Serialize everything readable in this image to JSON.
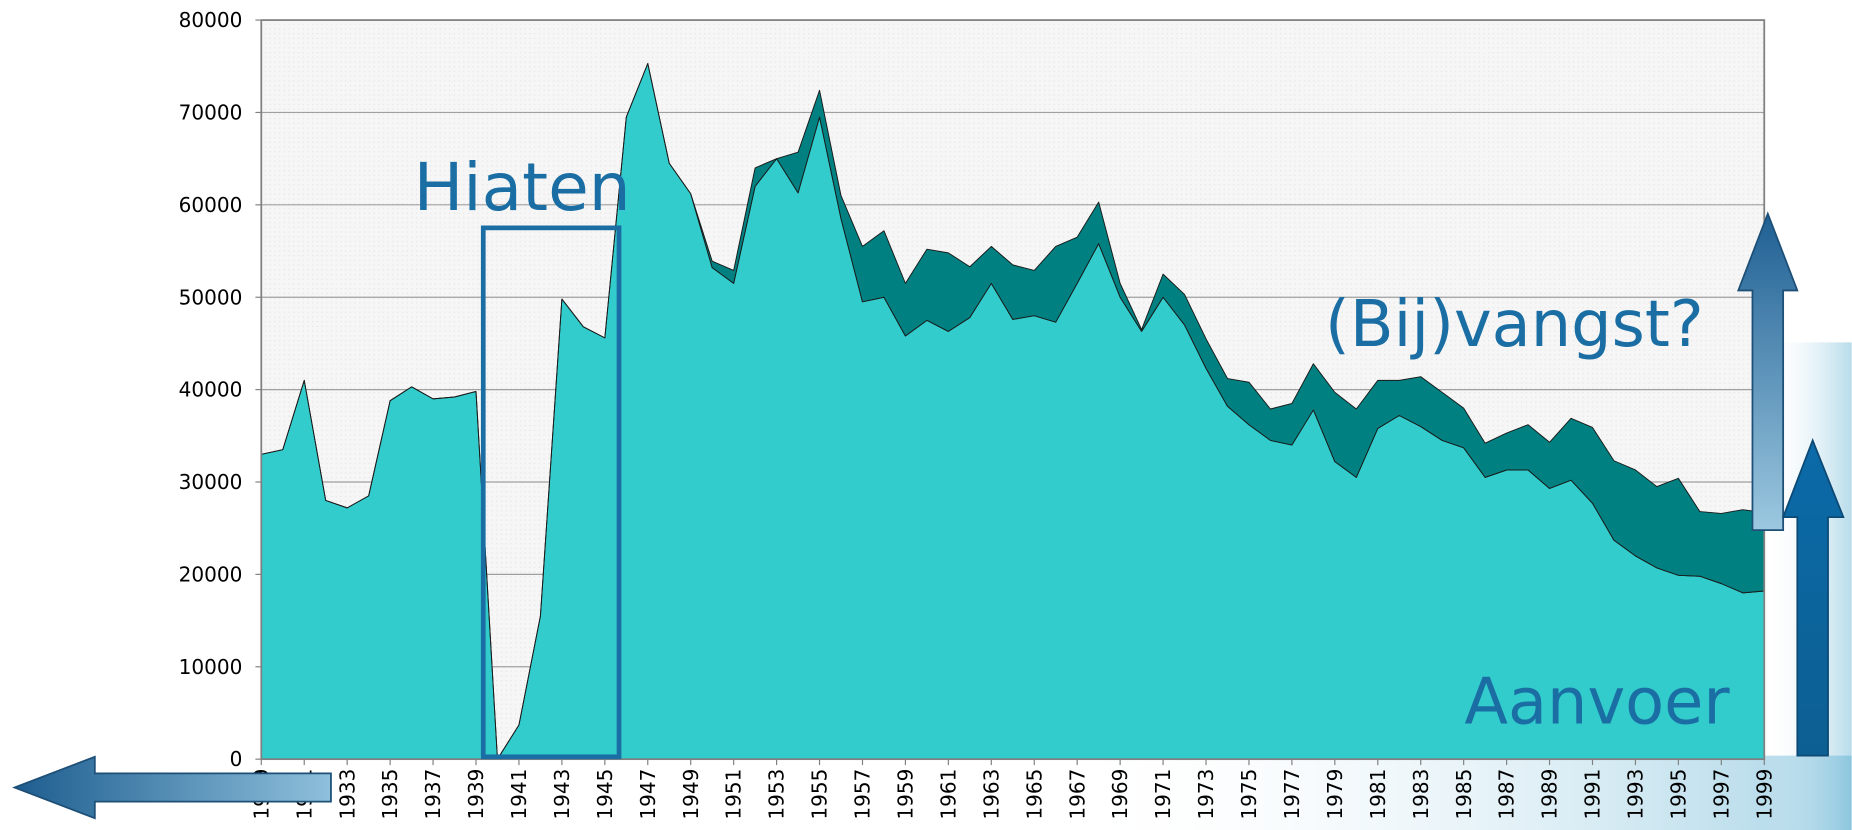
{
  "chart_data": {
    "type": "area",
    "stacked": true,
    "annotations": [
      "Hiaten"
    ],
    "x": [
      1929,
      1930,
      1931,
      1932,
      1933,
      1934,
      1935,
      1936,
      1937,
      1938,
      1939,
      1940,
      1941,
      1942,
      1943,
      1944,
      1945,
      1946,
      1947,
      1948,
      1949,
      1950,
      1951,
      1952,
      1953,
      1954,
      1955,
      1956,
      1957,
      1958,
      1959,
      1960,
      1961,
      1962,
      1963,
      1964,
      1965,
      1966,
      1967,
      1968,
      1969,
      1970,
      1971,
      1972,
      1973,
      1974,
      1975,
      1976,
      1977,
      1978,
      1979,
      1980,
      1981,
      1982,
      1983,
      1984,
      1985,
      1986,
      1987,
      1988,
      1989,
      1990,
      1991,
      1992,
      1993,
      1994,
      1995,
      1996,
      1997,
      1998,
      1999
    ],
    "series": [
      {
        "name": "Aanvoer",
        "color": "#33cccc",
        "values": [
          33000,
          33500,
          41000,
          28000,
          27200,
          28500,
          38800,
          40300,
          39000,
          39200,
          39800,
          0,
          3700,
          15500,
          49800,
          46800,
          45600,
          69500,
          75300,
          64500,
          61200,
          53200,
          51500,
          62000,
          65000,
          61300,
          69500,
          58500,
          49500,
          50000,
          45800,
          47500,
          46300,
          47800,
          51500,
          47600,
          48000,
          47300,
          51500,
          55800,
          50000,
          46300,
          50000,
          47000,
          42300,
          38200,
          36200,
          34500,
          34000,
          37800,
          32200,
          30500,
          35800,
          37200,
          36000,
          34500,
          33700,
          30500,
          31300,
          31300,
          29300,
          30200,
          27700,
          23700,
          22000,
          20700,
          19900,
          19800,
          19000,
          18000,
          18200
        ]
      },
      {
        "name": "(Bij)vangst?",
        "color": "#008080",
        "values": [
          0,
          0,
          0,
          0,
          0,
          0,
          0,
          0,
          0,
          0,
          0,
          0,
          0,
          0,
          0,
          0,
          0,
          0,
          0,
          0,
          0,
          700,
          1400,
          2000,
          0,
          4400,
          2900,
          2500,
          6000,
          7200,
          5700,
          7700,
          8500,
          5500,
          4000,
          5900,
          4900,
          8200,
          5000,
          4500,
          1500,
          200,
          2500,
          3300,
          3200,
          3000,
          4600,
          3400,
          4500,
          5000,
          7500,
          7400,
          5200,
          3800,
          5400,
          5200,
          4300,
          3700,
          4000,
          4900,
          5000,
          6700,
          8200,
          8600,
          9300,
          8800,
          10500,
          7000,
          7600,
          9000,
          8500
        ]
      }
    ],
    "xlim": [
      1929,
      1999
    ],
    "xticks": [
      1929,
      1931,
      1933,
      1935,
      1937,
      1939,
      1941,
      1943,
      1945,
      1947,
      1949,
      1951,
      1953,
      1955,
      1957,
      1959,
      1961,
      1963,
      1965,
      1967,
      1969,
      1971,
      1973,
      1975,
      1977,
      1979,
      1981,
      1983,
      1985,
      1987,
      1989,
      1991,
      1993,
      1995,
      1997,
      1999
    ],
    "ylim": [
      0,
      80000
    ],
    "yticks": [
      0,
      10000,
      20000,
      30000,
      40000,
      50000,
      60000,
      70000,
      80000
    ],
    "grid": true
  }
}
